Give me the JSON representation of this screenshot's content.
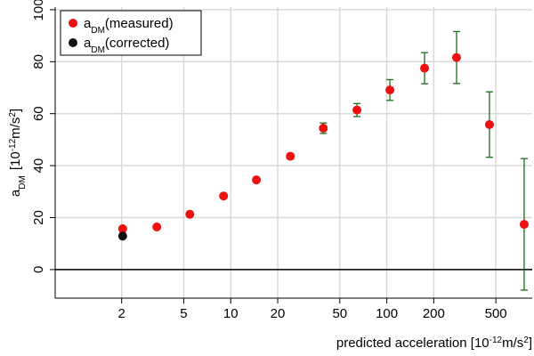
{
  "chart_data": {
    "type": "scatter",
    "x_label": [
      "predicted acceleration [10",
      "-12",
      "m/s",
      "2",
      "]"
    ],
    "y_label": [
      "a",
      "DM",
      "[10",
      "-12",
      "m/s",
      "2",
      "]"
    ],
    "x_log": true,
    "xlim": [
      0.75,
      855
    ],
    "ylim": [
      -11,
      101
    ],
    "xticks": [
      2,
      5,
      10,
      20,
      50,
      100,
      200,
      500
    ],
    "yticks": [
      0,
      20,
      40,
      60,
      80,
      100
    ],
    "grid": true,
    "reference_line": 0,
    "legend": "top-left",
    "error_color": "#1b6e1b",
    "series": [
      {
        "name": [
          "a",
          "DM",
          "(measured)"
        ],
        "color": "#ee1111",
        "x": [
          2.03,
          3.36,
          5.47,
          9.0,
          14.6,
          24.1,
          39.2,
          64.4,
          104.7,
          174.6,
          280,
          455,
          759
        ],
        "values": [
          15.7,
          16.4,
          21.3,
          28.3,
          34.5,
          43.6,
          54.4,
          61.4,
          69.1,
          77.5,
          81.6,
          55.8,
          17.4
        ],
        "errors": [
          0.5,
          0.5,
          0.5,
          0.5,
          0.5,
          1,
          2,
          2.5,
          4,
          6,
          10,
          12.6,
          25.3
        ]
      },
      {
        "name": [
          "a",
          "DM",
          "(corrected)"
        ],
        "color": "#111111",
        "x": [
          2.03
        ],
        "values": [
          12.9
        ]
      }
    ]
  }
}
